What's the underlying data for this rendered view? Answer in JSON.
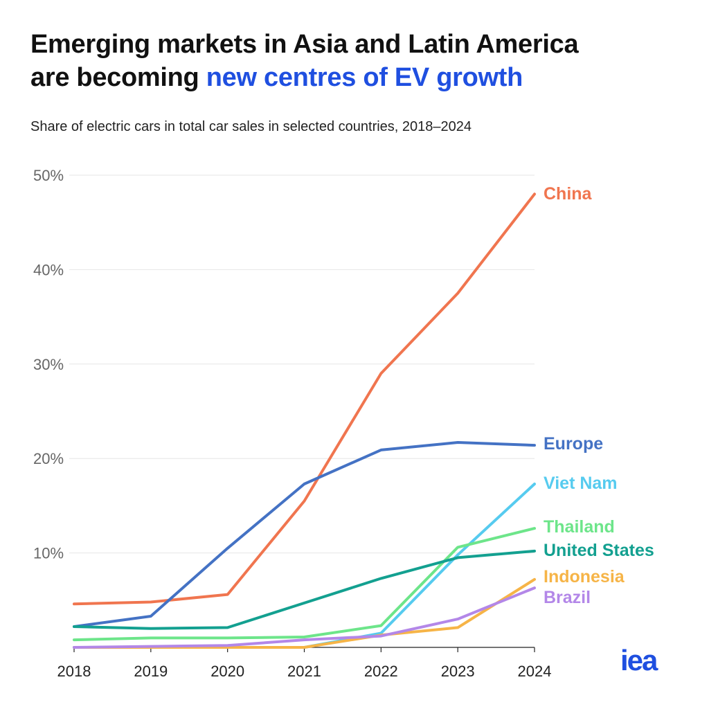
{
  "header": {
    "title_line1": "Emerging markets in Asia and Latin America",
    "title_line2_plain": "are becoming ",
    "title_line2_highlight": "new centres of EV growth",
    "subtitle": "Share of electric cars in total car sales in selected countries, 2018–2024",
    "highlight_color": "#1f4fe0"
  },
  "logo": {
    "text": "iea",
    "color": "#1f4fe0"
  },
  "chart_data": {
    "type": "line",
    "x": [
      "2018",
      "2019",
      "2020",
      "2021",
      "2022",
      "2023",
      "2024"
    ],
    "y_ticks": [
      10,
      20,
      30,
      40,
      50
    ],
    "y_tick_labels": [
      "10%",
      "20%",
      "30%",
      "40%",
      "50%"
    ],
    "ylim": [
      0,
      50
    ],
    "grid": "horizontal",
    "legend": "direct labels at line ends (right)",
    "series": [
      {
        "name": "China",
        "color": "#f0754f",
        "values": [
          4.6,
          4.8,
          5.6,
          15.5,
          29.0,
          37.5,
          48.0
        ]
      },
      {
        "name": "Europe",
        "color": "#4472c4",
        "values": [
          2.2,
          3.3,
          10.5,
          17.3,
          20.9,
          21.7,
          21.4
        ]
      },
      {
        "name": "Viet Nam",
        "color": "#56cbef",
        "values": [
          0,
          0,
          0,
          0,
          1.5,
          9.8,
          17.3
        ]
      },
      {
        "name": "Thailand",
        "color": "#6de58a",
        "values": [
          0.8,
          1.0,
          1.0,
          1.1,
          2.3,
          10.6,
          12.6
        ]
      },
      {
        "name": "United States",
        "color": "#13a090",
        "values": [
          2.2,
          2.0,
          2.1,
          4.7,
          7.3,
          9.5,
          10.2
        ]
      },
      {
        "name": "Indonesia",
        "color": "#f6b447",
        "values": [
          0,
          0,
          0,
          0,
          1.3,
          2.1,
          7.2
        ]
      },
      {
        "name": "Brazil",
        "color": "#b387e8",
        "values": [
          0,
          0.1,
          0.2,
          0.8,
          1.2,
          3.0,
          6.3
        ]
      }
    ]
  }
}
